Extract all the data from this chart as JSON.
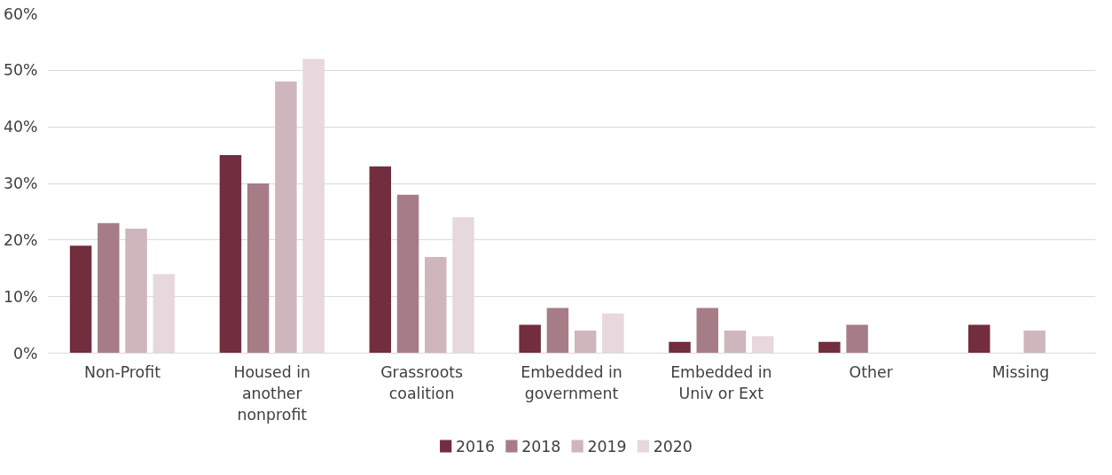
{
  "chart_data": {
    "type": "bar",
    "categories": [
      "Non-Profit",
      "Housed in\nanother\nnonprofit",
      "Grassroots\ncoalition",
      "Embedded in\ngovernment",
      "Embedded in\nUniv or Ext",
      "Other",
      "Missing"
    ],
    "series": [
      {
        "name": "2016",
        "color": "#722d3f",
        "values": [
          19,
          35,
          33,
          5,
          2,
          2,
          5
        ]
      },
      {
        "name": "2018",
        "color": "#a67d87",
        "values": [
          23,
          30,
          28,
          8,
          8,
          5,
          null
        ]
      },
      {
        "name": "2019",
        "color": "#cfb6bc",
        "values": [
          22,
          48,
          17,
          4,
          4,
          null,
          4
        ]
      },
      {
        "name": "2020",
        "color": "#e6d8dc",
        "values": [
          14,
          52,
          24,
          7,
          3,
          null,
          null
        ]
      }
    ],
    "ylim": [
      0,
      60
    ],
    "yticks": [
      {
        "value": 0,
        "label": "0%"
      },
      {
        "value": 10,
        "label": "10%"
      },
      {
        "value": 20,
        "label": "20%"
      },
      {
        "value": 30,
        "label": "30%"
      },
      {
        "value": 40,
        "label": "40%"
      },
      {
        "value": 50,
        "label": "50%"
      },
      {
        "value": 60,
        "label": "60%"
      }
    ],
    "grid": "y",
    "legend": "bottom"
  }
}
